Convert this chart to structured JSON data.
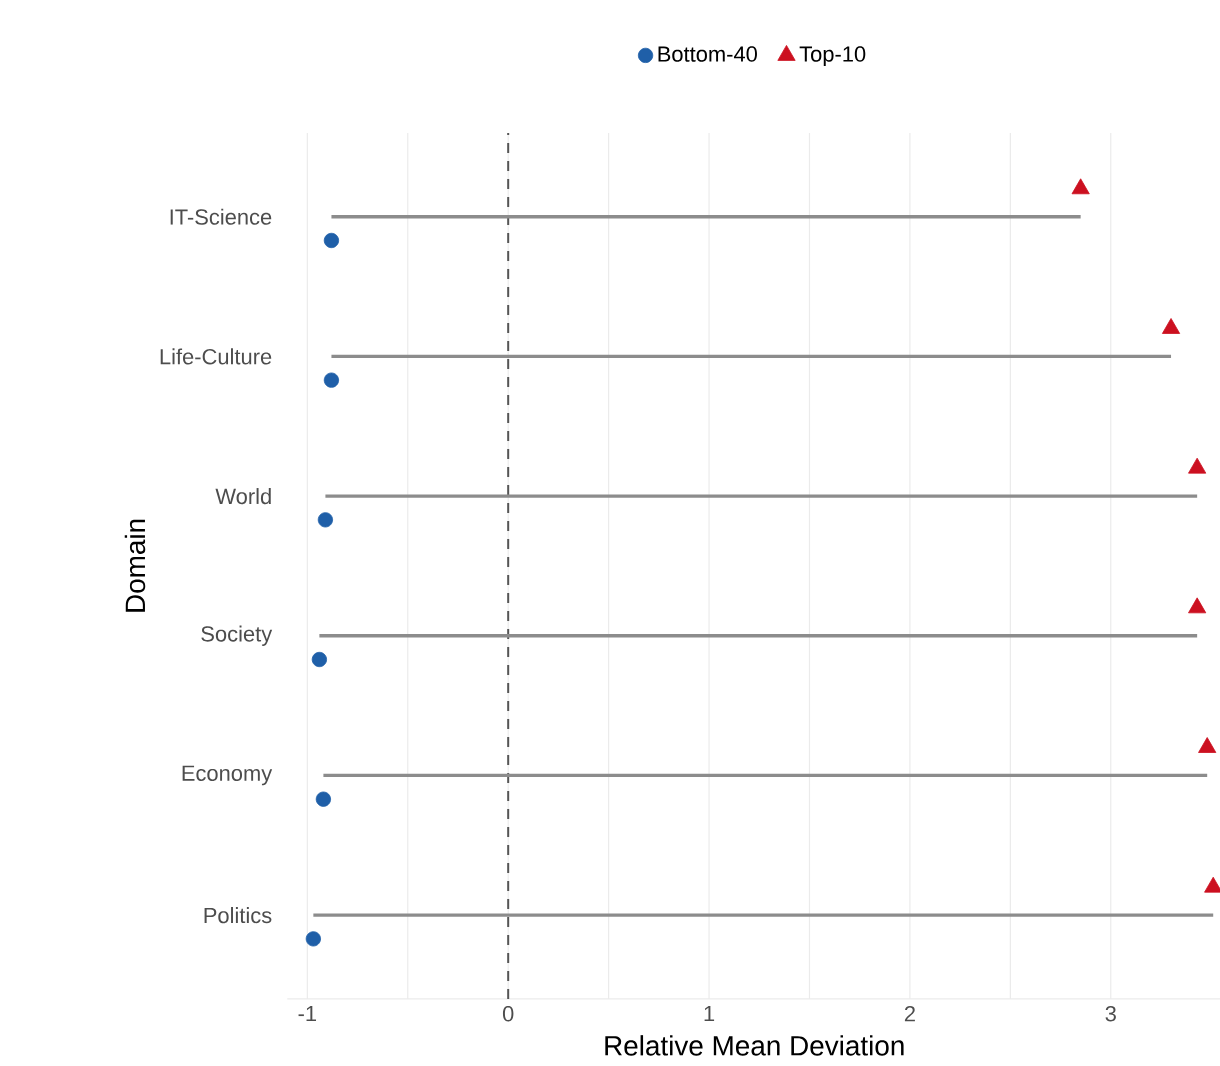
{
  "chart_data": {
    "type": "scatter",
    "orientation": "horizontal",
    "xlabel": "Relative Mean Deviation",
    "ylabel": "Domain",
    "categories": [
      "IT-Science",
      "Life-Culture",
      "World",
      "Society",
      "Economy",
      "Politics"
    ],
    "series": [
      {
        "name": "Bottom-40",
        "color": "#1f5fa8",
        "marker": "circle",
        "values": [
          -0.88,
          -0.88,
          -0.91,
          -0.94,
          -0.92,
          -0.97
        ]
      },
      {
        "name": "Top-10",
        "color": "#cc1020",
        "marker": "triangle",
        "values": [
          2.85,
          3.3,
          3.43,
          3.43,
          3.48,
          3.51
        ]
      }
    ],
    "xlim": [
      -1.1,
      3.55
    ],
    "xticks": [
      -1,
      0,
      1,
      2,
      3
    ],
    "grid": "x",
    "legend": "top",
    "ref_lines": [
      {
        "axis": "x",
        "value": 0,
        "line_style": "dashed",
        "color": "#555555"
      }
    ]
  }
}
